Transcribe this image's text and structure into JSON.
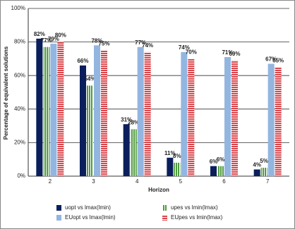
{
  "chart_data": {
    "type": "bar",
    "x_label": "Horizon",
    "y_label": "Percentage of equivalent solutions",
    "categories": [
      "2",
      "3",
      "4",
      "5",
      "6",
      "7"
    ],
    "series": [
      {
        "name": "uopt  vs  lmax(lmin)",
        "color": "#0a1f5c",
        "pattern": "solid",
        "values": [
          82,
          66,
          31,
          11,
          6,
          4
        ],
        "value_labels": [
          "82%",
          "66%",
          "31%",
          "11%",
          "6%",
          "4%"
        ]
      },
      {
        "name": "upes  vs  lmin(lmax)",
        "color": "#4e9a3c",
        "pattern": "vertical-stripes",
        "values": [
          77,
          54,
          28,
          8,
          6,
          5
        ],
        "value_labels": [
          "77%",
          "54%",
          "28%",
          "8%",
          "6%",
          "5%"
        ]
      },
      {
        "name": "EUopt  vs  lmax(lmin)",
        "color": "#93b6e0",
        "pattern": "solid",
        "values": [
          79,
          78,
          77,
          74,
          71,
          67
        ],
        "value_labels": [
          "79%",
          "78%",
          "77%",
          "74%",
          "71%",
          "67%"
        ]
      },
      {
        "name": "EUpes  vs  lmin(lmax)",
        "color": "#d9454a",
        "pattern": "horizontal-stripes",
        "values": [
          80,
          75,
          74,
          70,
          69,
          65
        ],
        "value_labels": [
          "80%",
          "75%",
          "74%",
          "70%",
          "69%",
          "65%"
        ]
      }
    ],
    "ylim": [
      0,
      100
    ],
    "yticks": [
      {
        "value": 0,
        "label": "0%"
      },
      {
        "value": 20,
        "label": "20%"
      },
      {
        "value": 40,
        "label": "40%"
      },
      {
        "value": 60,
        "label": "60%"
      },
      {
        "value": 80,
        "label": "80%"
      },
      {
        "value": 100,
        "label": "100%"
      }
    ],
    "grid": true
  }
}
